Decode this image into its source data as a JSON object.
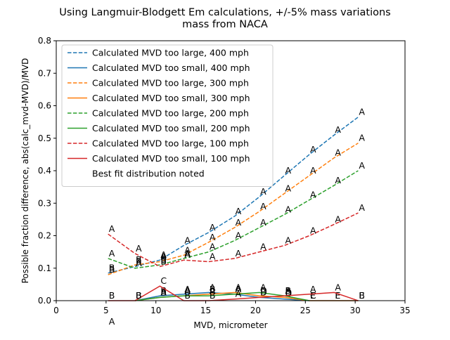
{
  "chart_data": {
    "type": "line",
    "title_line1": "Using Langmuir-Blodgett Em calculations, +/-5% mass variations",
    "title_line2": "mass from NACA",
    "xlabel": "MVD, micrometer",
    "ylabel": "Possible fraction difference, abs(calc_mvd-MVD)/MVD",
    "xlim": [
      0,
      35
    ],
    "ylim": [
      0,
      0.8
    ],
    "xticks": [
      0,
      5,
      10,
      15,
      20,
      25,
      30,
      35
    ],
    "yticks": [
      0.0,
      0.1,
      0.2,
      0.3,
      0.4,
      0.5,
      0.6,
      0.7,
      0.8
    ],
    "grid": false,
    "legend_position": "top-left",
    "series": [
      {
        "name": "Calculated MVD too large, 400 mph",
        "color": "#1f77b4",
        "dash": "dashed",
        "x": [
          5.2,
          7.9,
          10.4,
          12.8,
          15.3,
          17.9,
          20.4,
          22.9,
          25.4,
          27.9,
          30.3
        ],
        "y": [
          0.085,
          0.105,
          0.125,
          0.17,
          0.21,
          0.26,
          0.32,
          0.385,
          0.45,
          0.51,
          0.565
        ],
        "labels": [
          "B",
          "B",
          "A",
          "A",
          "A",
          "A",
          "A",
          "A",
          "A",
          "A",
          "A"
        ]
      },
      {
        "name": "Calculated MVD too small, 400 mph",
        "color": "#1f77b4",
        "dash": "solid",
        "x": [
          7.9,
          10.4,
          12.8,
          15.3,
          17.9,
          20.4,
          22.9,
          25.4,
          27.9,
          30.3
        ],
        "y": [
          0.0,
          0.015,
          0.02,
          0.025,
          0.02,
          0.01,
          0.005,
          0.0,
          0.0,
          0.0
        ],
        "labels": [
          "B",
          "B",
          "A",
          "A",
          "A",
          "B",
          "D",
          "E",
          "E",
          "E"
        ]
      },
      {
        "name": "Calculated MVD too large, 300 mph",
        "color": "#ff7f0e",
        "dash": "dashed",
        "x": [
          5.2,
          7.9,
          10.4,
          12.8,
          15.3,
          17.9,
          20.4,
          22.9,
          25.4,
          27.9,
          30.3
        ],
        "y": [
          0.08,
          0.11,
          0.12,
          0.14,
          0.18,
          0.225,
          0.275,
          0.33,
          0.385,
          0.44,
          0.485
        ],
        "labels": [
          "B",
          "B",
          "A",
          "A",
          "A",
          "A",
          "A",
          "A",
          "A",
          "A",
          "A"
        ]
      },
      {
        "name": "Calculated MVD too small, 300 mph",
        "color": "#ff7f0e",
        "dash": "solid",
        "x": [
          7.9,
          10.4,
          12.8,
          15.3,
          17.9,
          20.4,
          22.9,
          25.4,
          27.9,
          30.3
        ],
        "y": [
          0.0,
          0.01,
          0.015,
          0.02,
          0.025,
          0.015,
          0.01,
          0.0,
          0.0,
          0.0
        ],
        "labels": [
          "B",
          "B",
          "A",
          "B",
          "A",
          "D",
          "D",
          "E",
          "E",
          "E"
        ]
      },
      {
        "name": "Calculated MVD too large, 200 mph",
        "color": "#2ca02c",
        "dash": "dashed",
        "x": [
          5.2,
          7.9,
          10.4,
          12.8,
          15.3,
          17.9,
          20.4,
          22.9,
          25.4,
          27.9,
          30.3
        ],
        "y": [
          0.13,
          0.1,
          0.11,
          0.13,
          0.15,
          0.185,
          0.225,
          0.265,
          0.31,
          0.355,
          0.4
        ],
        "labels": [
          "A",
          "A",
          "B",
          "A",
          "A",
          "A",
          "A",
          "A",
          "A",
          "A",
          "A"
        ]
      },
      {
        "name": "Calculated MVD too small, 200 mph",
        "color": "#2ca02c",
        "dash": "solid",
        "x": [
          7.9,
          10.4,
          12.8,
          15.3,
          17.9,
          20.4,
          22.9,
          25.4
        ],
        "y": [
          0.0,
          0.01,
          0.015,
          0.015,
          0.02,
          0.025,
          0.015,
          0.0
        ],
        "labels": [
          "B",
          "A",
          "A",
          "A",
          "A",
          "A",
          "A",
          "C"
        ]
      },
      {
        "name": "Calculated MVD too large, 100 mph",
        "color": "#d62728",
        "dash": "dashed",
        "x": [
          5.2,
          7.9,
          10.4,
          12.8,
          15.3,
          17.9,
          20.4,
          22.9,
          25.4,
          27.9,
          30.3
        ],
        "y": [
          0.205,
          0.145,
          0.105,
          0.125,
          0.12,
          0.13,
          0.15,
          0.17,
          0.2,
          0.235,
          0.27
        ],
        "labels": [
          "A",
          "A",
          "B",
          "A",
          "A",
          "A",
          "A",
          "A",
          "A",
          "A",
          "A"
        ]
      },
      {
        "name": "Calculated MVD too small, 100 mph",
        "color": "#d62728",
        "dash": "solid",
        "x": [
          5.2,
          7.9,
          10.4,
          12.8,
          15.3,
          17.9,
          20.4,
          22.9,
          25.4,
          27.9,
          30.3
        ],
        "y": [
          0.0,
          0.0,
          0.045,
          0.0,
          0.0,
          0.005,
          0.01,
          0.015,
          0.02,
          0.025,
          0.0
        ],
        "labels": [
          "B",
          "B",
          "C",
          "B",
          "B",
          "A",
          "D",
          "B",
          "A",
          "A",
          "B"
        ]
      }
    ],
    "legend_extra": "Best fit distribution noted",
    "outside_annotation": {
      "x": 5.2,
      "y": -0.08,
      "text": "A"
    }
  }
}
